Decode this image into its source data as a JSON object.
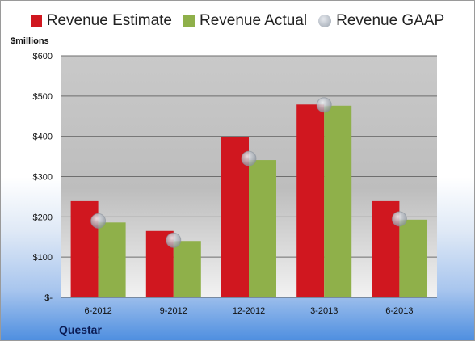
{
  "chart_data": {
    "type": "bar",
    "categories": [
      "6-2012",
      "9-2012",
      "12-2012",
      "3-2013",
      "6-2013"
    ],
    "series": [
      {
        "name": "Revenue Estimate",
        "values": [
          239,
          165,
          398,
          479,
          239
        ],
        "color": "#d0171f"
      },
      {
        "name": "Revenue Actual",
        "values": [
          186,
          140,
          341,
          476,
          193
        ],
        "color": "#8fb04a"
      }
    ],
    "gaap": {
      "name": "Revenue GAAP",
      "values": [
        190,
        142,
        345,
        478,
        195
      ]
    },
    "ylabel": "$millions",
    "ylim": [
      0,
      600
    ],
    "yticks": [
      0,
      100,
      200,
      300,
      400,
      500,
      600
    ],
    "ytick_labels": [
      "$-",
      "$100",
      "$200",
      "$300",
      "$400",
      "$500",
      "$600"
    ],
    "grid": true,
    "legend": "top-center",
    "company": "Questar"
  }
}
